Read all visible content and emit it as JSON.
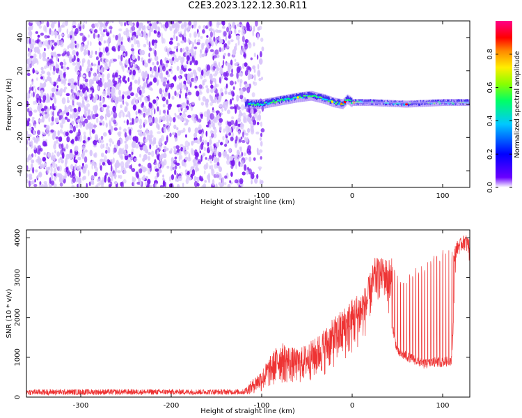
{
  "title": "C2E3.2023.122.12.30.R11",
  "colors": {
    "spectrogram_noise": "#7a1cf0",
    "spectrogram_noise_light": "#d9c6fb",
    "snr_line": "#ee3333",
    "axis": "#000000"
  },
  "chart_data": [
    {
      "type": "heatmap",
      "xlabel": "Height of straight line (km)",
      "ylabel": "Frequency (Hz)",
      "xlim": [
        -360,
        130
      ],
      "ylim": [
        -50,
        50
      ],
      "xticks": [
        -300,
        -200,
        -100,
        0,
        100
      ],
      "xtick_labels": [
        "-300",
        "-200",
        "-100",
        "0",
        "100"
      ],
      "yticks": [
        -40,
        -20,
        0,
        20,
        40
      ],
      "ytick_labels": [
        "-40",
        "-20",
        "0",
        "20",
        "40"
      ],
      "colorbar": {
        "label": "Normalized spectral amplitude",
        "range": [
          0,
          1
        ],
        "ticks": [
          0.0,
          0.2,
          0.4,
          0.6,
          0.8
        ],
        "tick_labels": [
          "0.0",
          "0.2",
          "0.4",
          "0.6",
          "0.8"
        ],
        "colormap": [
          "#ffffff",
          "#6a00ff",
          "#0000ff",
          "#00c8ff",
          "#00ff66",
          "#88ff00",
          "#ffee00",
          "#ff8800",
          "#ff0000",
          "#ff0088"
        ]
      },
      "features": {
        "noise_region_x": [
          -360,
          -108
        ],
        "signal_start_x": -118,
        "signal_band": [
          {
            "x": -118,
            "f": 0,
            "amp": 0.45
          },
          {
            "x": -100,
            "f": 0,
            "amp": 0.5
          },
          {
            "x": -80,
            "f": 2,
            "amp": 0.5
          },
          {
            "x": -60,
            "f": 4,
            "amp": 0.55
          },
          {
            "x": -45,
            "f": 5,
            "amp": 0.55
          },
          {
            "x": -30,
            "f": 3,
            "amp": 0.55
          },
          {
            "x": -20,
            "f": 1,
            "amp": 0.8
          },
          {
            "x": -10,
            "f": 0,
            "amp": 0.85
          },
          {
            "x": -5,
            "f": 3,
            "amp": 0.6
          },
          {
            "x": 0,
            "f": 1,
            "amp": 0.85
          },
          {
            "x": 20,
            "f": 1,
            "amp": 0.65
          },
          {
            "x": 60,
            "f": 0,
            "amp": 0.85
          },
          {
            "x": 100,
            "f": 1,
            "amp": 0.55
          },
          {
            "x": 130,
            "f": 1,
            "amp": 0.5
          }
        ]
      }
    },
    {
      "type": "line",
      "xlabel": "Height of straight line (km)",
      "ylabel": "SNR (10 * v/v)",
      "xlim": [
        -360,
        130
      ],
      "ylim": [
        0,
        4200
      ],
      "xticks": [
        -300,
        -200,
        -100,
        0,
        100
      ],
      "xtick_labels": [
        "-300",
        "-200",
        "-100",
        "0",
        "100"
      ],
      "yticks": [
        0,
        1000,
        2000,
        3000,
        4000
      ],
      "ytick_labels": [
        "0",
        "1000",
        "2000",
        "3000",
        "4000"
      ],
      "series": [
        {
          "envelope": [
            {
              "x": -360,
              "lo": 50,
              "hi": 200
            },
            {
              "x": -200,
              "lo": 60,
              "hi": 200
            },
            {
              "x": -120,
              "lo": 60,
              "hi": 200
            },
            {
              "x": -100,
              "lo": 100,
              "hi": 700
            },
            {
              "x": -80,
              "lo": 300,
              "hi": 1400
            },
            {
              "x": -60,
              "lo": 300,
              "hi": 1200
            },
            {
              "x": -40,
              "lo": 400,
              "hi": 1500
            },
            {
              "x": -20,
              "lo": 700,
              "hi": 2000
            },
            {
              "x": 0,
              "lo": 1000,
              "hi": 2500
            },
            {
              "x": 15,
              "lo": 1500,
              "hi": 2800
            },
            {
              "x": 25,
              "lo": 2300,
              "hi": 3500
            },
            {
              "x": 35,
              "lo": 2500,
              "hi": 3500
            },
            {
              "x": 45,
              "lo": 1600,
              "hi": 3500
            },
            {
              "x": 50,
              "lo": 1000,
              "hi": 3100
            },
            {
              "x": 60,
              "lo": 900,
              "hi": 3100
            },
            {
              "x": 70,
              "lo": 800,
              "hi": 3300
            },
            {
              "x": 80,
              "lo": 700,
              "hi": 3300
            },
            {
              "x": 90,
              "lo": 750,
              "hi": 3600
            },
            {
              "x": 100,
              "lo": 750,
              "hi": 3700
            },
            {
              "x": 110,
              "lo": 800,
              "hi": 3700
            },
            {
              "x": 115,
              "lo": 3500,
              "hi": 3900
            },
            {
              "x": 125,
              "lo": 3700,
              "hi": 4100
            },
            {
              "x": 130,
              "lo": 3300,
              "hi": 4000
            }
          ]
        }
      ]
    }
  ]
}
